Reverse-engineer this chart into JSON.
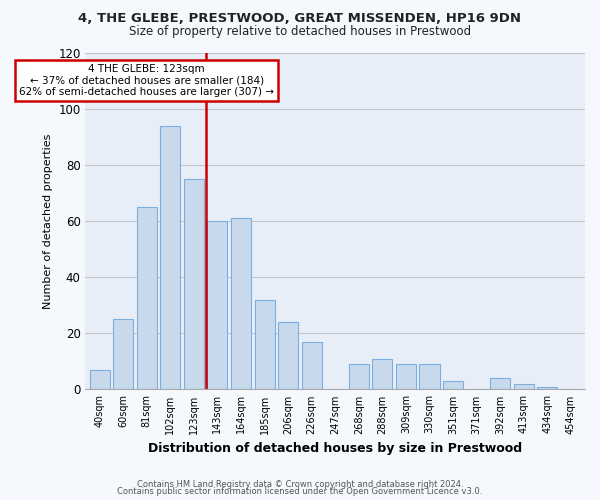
{
  "title1": "4, THE GLEBE, PRESTWOOD, GREAT MISSENDEN, HP16 9DN",
  "title2": "Size of property relative to detached houses in Prestwood",
  "xlabel": "Distribution of detached houses by size in Prestwood",
  "ylabel": "Number of detached properties",
  "categories": [
    "40sqm",
    "60sqm",
    "81sqm",
    "102sqm",
    "123sqm",
    "143sqm",
    "164sqm",
    "185sqm",
    "206sqm",
    "226sqm",
    "247sqm",
    "268sqm",
    "288sqm",
    "309sqm",
    "330sqm",
    "351sqm",
    "371sqm",
    "392sqm",
    "413sqm",
    "434sqm",
    "454sqm"
  ],
  "values": [
    7,
    25,
    65,
    94,
    75,
    60,
    61,
    32,
    24,
    17,
    0,
    9,
    11,
    9,
    9,
    3,
    0,
    4,
    2,
    1,
    0
  ],
  "bar_color": "#c8d9ec",
  "bar_edge_color": "#7aafe0",
  "highlight_index": 4,
  "highlight_line_color": "#cc0000",
  "highlight_box_color": "#cc0000",
  "ylim": [
    0,
    120
  ],
  "yticks": [
    0,
    20,
    40,
    60,
    80,
    100,
    120
  ],
  "annotation_title": "4 THE GLEBE: 123sqm",
  "annotation_line1": "← 37% of detached houses are smaller (184)",
  "annotation_line2": "62% of semi-detached houses are larger (307) →",
  "footer1": "Contains HM Land Registry data © Crown copyright and database right 2024.",
  "footer2": "Contains public sector information licensed under the Open Government Licence v3.0.",
  "background_color": "#f5f8fc",
  "plot_bg_color": "#e8eef8"
}
